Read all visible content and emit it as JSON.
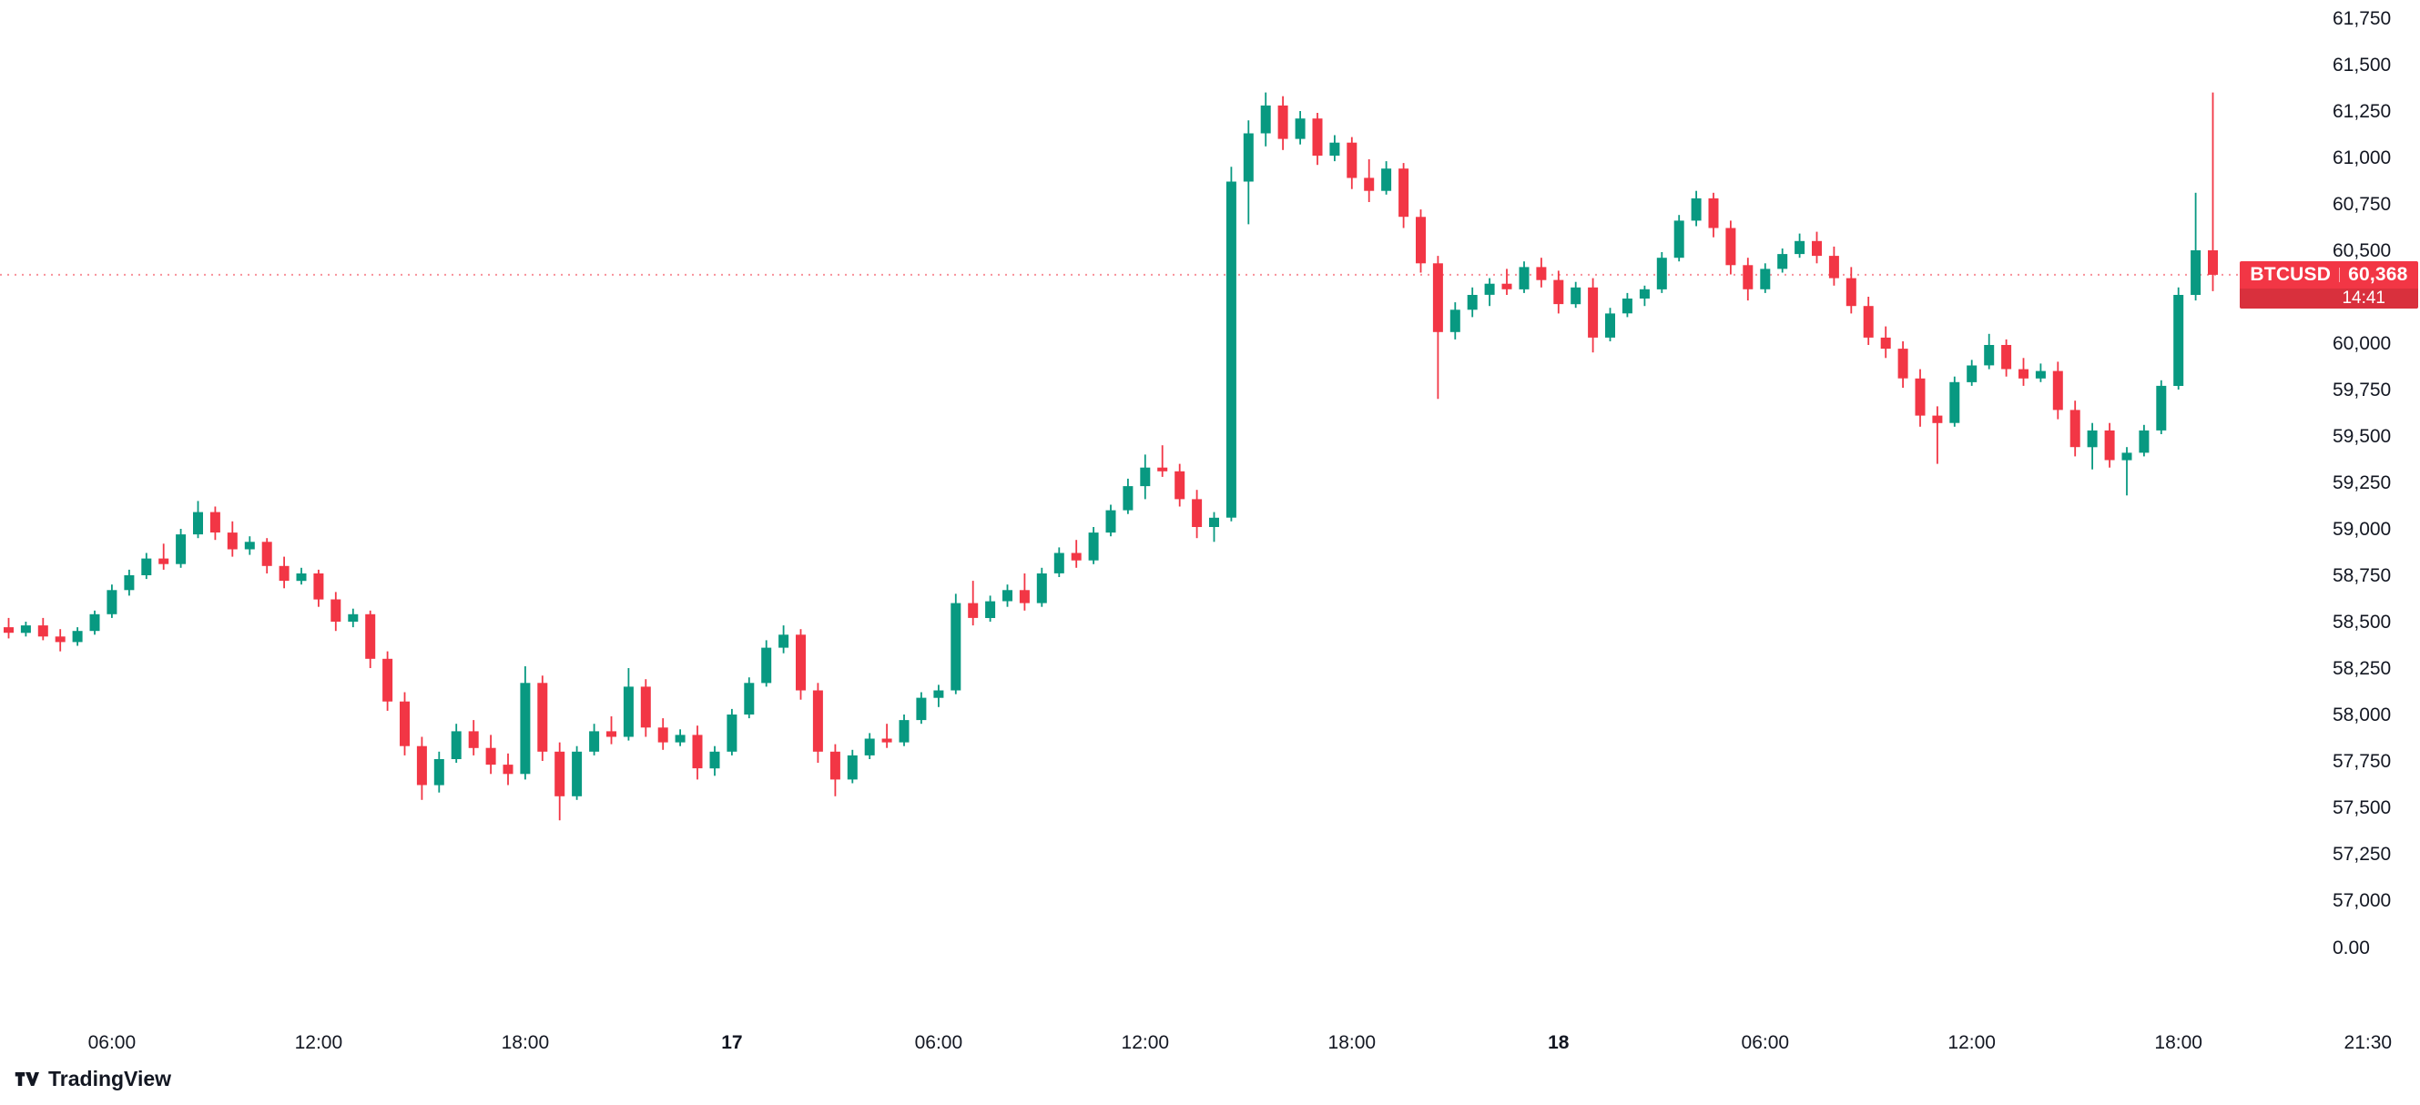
{
  "app": {
    "watermark_text": "TradingView"
  },
  "price_label": {
    "symbol": "BTCUSD",
    "price": "60,368",
    "countdown": "14:41"
  },
  "colors": {
    "up": "#089981",
    "down": "#F23645",
    "badge_bg": "#F23645",
    "price_line": "#F23645",
    "axis_text": "#131722",
    "background": "#FFFFFF"
  },
  "y_axis": {
    "ticks": [
      "61,750",
      "61,500",
      "61,250",
      "61,000",
      "60,750",
      "60,500",
      "60,000",
      "59,750",
      "59,500",
      "59,250",
      "59,000",
      "58,750",
      "58,500",
      "58,250",
      "58,000",
      "57,750",
      "57,500",
      "57,250",
      "57,000"
    ],
    "zero_label": "0.00"
  },
  "x_axis": {
    "labels": [
      {
        "text": "06:00",
        "index": 6,
        "bold": false
      },
      {
        "text": "12:00",
        "index": 18,
        "bold": false
      },
      {
        "text": "18:00",
        "index": 30,
        "bold": false
      },
      {
        "text": "17",
        "index": 42,
        "bold": true
      },
      {
        "text": "06:00",
        "index": 54,
        "bold": false
      },
      {
        "text": "12:00",
        "index": 66,
        "bold": false
      },
      {
        "text": "18:00",
        "index": 78,
        "bold": false
      },
      {
        "text": "18",
        "index": 90,
        "bold": true
      },
      {
        "text": "06:00",
        "index": 102,
        "bold": false
      },
      {
        "text": "12:00",
        "index": 114,
        "bold": false
      },
      {
        "text": "18:00",
        "index": 126,
        "bold": false
      },
      {
        "text": "21:30",
        "index": 137,
        "bold": false
      }
    ]
  },
  "chart_data": {
    "type": "candlestick",
    "symbol": "BTCUSD",
    "last_price": 60368,
    "price_range": [
      57000,
      61750
    ],
    "tick_step": 250,
    "legend_position": "none",
    "grid": false,
    "candles": [
      [
        58470,
        58520,
        58410,
        58440
      ],
      [
        58440,
        58500,
        58420,
        58480
      ],
      [
        58480,
        58520,
        58400,
        58420
      ],
      [
        58420,
        58460,
        58340,
        58390
      ],
      [
        58390,
        58470,
        58370,
        58450
      ],
      [
        58450,
        58560,
        58430,
        58540
      ],
      [
        58540,
        58700,
        58520,
        58670
      ],
      [
        58670,
        58780,
        58640,
        58750
      ],
      [
        58750,
        58870,
        58730,
        58840
      ],
      [
        58840,
        58920,
        58780,
        58810
      ],
      [
        58810,
        59000,
        58790,
        58970
      ],
      [
        58970,
        59150,
        58950,
        59090
      ],
      [
        59090,
        59120,
        58940,
        58980
      ],
      [
        58980,
        59040,
        58850,
        58890
      ],
      [
        58890,
        58960,
        58860,
        58930
      ],
      [
        58930,
        58950,
        58760,
        58800
      ],
      [
        58800,
        58850,
        58680,
        58720
      ],
      [
        58720,
        58790,
        58700,
        58760
      ],
      [
        58760,
        58780,
        58580,
        58620
      ],
      [
        58620,
        58660,
        58450,
        58500
      ],
      [
        58500,
        58570,
        58470,
        58540
      ],
      [
        58540,
        58560,
        58250,
        58300
      ],
      [
        58300,
        58340,
        58020,
        58070
      ],
      [
        58070,
        58120,
        57780,
        57830
      ],
      [
        57830,
        57880,
        57540,
        57620
      ],
      [
        57620,
        57800,
        57580,
        57760
      ],
      [
        57760,
        57950,
        57740,
        57910
      ],
      [
        57910,
        57970,
        57780,
        57820
      ],
      [
        57820,
        57890,
        57680,
        57730
      ],
      [
        57730,
        57790,
        57620,
        57680
      ],
      [
        57680,
        58260,
        57650,
        58170
      ],
      [
        58170,
        58210,
        57750,
        57800
      ],
      [
        57800,
        57850,
        57430,
        57560
      ],
      [
        57560,
        57830,
        57540,
        57800
      ],
      [
        57800,
        57950,
        57780,
        57910
      ],
      [
        57910,
        57990,
        57840,
        57880
      ],
      [
        57880,
        58250,
        57860,
        58150
      ],
      [
        58150,
        58190,
        57880,
        57930
      ],
      [
        57930,
        57980,
        57810,
        57850
      ],
      [
        57850,
        57920,
        57830,
        57890
      ],
      [
        57890,
        57940,
        57650,
        57710
      ],
      [
        57710,
        57830,
        57670,
        57800
      ],
      [
        57800,
        58030,
        57780,
        58000
      ],
      [
        58000,
        58200,
        57980,
        58170
      ],
      [
        58170,
        58400,
        58150,
        58360
      ],
      [
        58360,
        58480,
        58330,
        58430
      ],
      [
        58430,
        58460,
        58080,
        58130
      ],
      [
        58130,
        58170,
        57740,
        57800
      ],
      [
        57800,
        57840,
        57560,
        57650
      ],
      [
        57650,
        57810,
        57630,
        57780
      ],
      [
        57780,
        57900,
        57760,
        57870
      ],
      [
        57870,
        57950,
        57820,
        57850
      ],
      [
        57850,
        58000,
        57830,
        57970
      ],
      [
        57970,
        58120,
        57950,
        58090
      ],
      [
        58090,
        58160,
        58040,
        58130
      ],
      [
        58130,
        58650,
        58110,
        58600
      ],
      [
        58600,
        58720,
        58480,
        58520
      ],
      [
        58520,
        58640,
        58500,
        58610
      ],
      [
        58610,
        58700,
        58580,
        58670
      ],
      [
        58670,
        58760,
        58560,
        58600
      ],
      [
        58600,
        58790,
        58580,
        58760
      ],
      [
        58760,
        58900,
        58740,
        58870
      ],
      [
        58870,
        58940,
        58790,
        58830
      ],
      [
        58830,
        59010,
        58810,
        58980
      ],
      [
        58980,
        59130,
        58960,
        59100
      ],
      [
        59100,
        59270,
        59080,
        59230
      ],
      [
        59230,
        59400,
        59160,
        59330
      ],
      [
        59330,
        59450,
        59280,
        59310
      ],
      [
        59310,
        59350,
        59120,
        59160
      ],
      [
        59160,
        59210,
        58950,
        59010
      ],
      [
        59010,
        59090,
        58930,
        59060
      ],
      [
        59060,
        60950,
        59040,
        60870
      ],
      [
        60870,
        61200,
        60640,
        61130
      ],
      [
        61130,
        61350,
        61060,
        61280
      ],
      [
        61280,
        61330,
        61040,
        61100
      ],
      [
        61100,
        61250,
        61070,
        61210
      ],
      [
        61210,
        61240,
        60960,
        61010
      ],
      [
        61010,
        61120,
        60980,
        61080
      ],
      [
        61080,
        61110,
        60830,
        60890
      ],
      [
        60890,
        60990,
        60760,
        60820
      ],
      [
        60820,
        60980,
        60800,
        60940
      ],
      [
        60940,
        60970,
        60620,
        60680
      ],
      [
        60680,
        60720,
        60380,
        60430
      ],
      [
        60430,
        60470,
        59700,
        60060
      ],
      [
        60060,
        60220,
        60020,
        60180
      ],
      [
        60180,
        60300,
        60140,
        60260
      ],
      [
        60260,
        60350,
        60200,
        60320
      ],
      [
        60320,
        60400,
        60260,
        60290
      ],
      [
        60290,
        60440,
        60270,
        60410
      ],
      [
        60410,
        60460,
        60300,
        60340
      ],
      [
        60340,
        60390,
        60160,
        60210
      ],
      [
        60210,
        60330,
        60190,
        60300
      ],
      [
        60300,
        60350,
        59950,
        60030
      ],
      [
        60030,
        60190,
        60010,
        60160
      ],
      [
        60160,
        60270,
        60140,
        60240
      ],
      [
        60240,
        60310,
        60200,
        60290
      ],
      [
        60290,
        60490,
        60270,
        60460
      ],
      [
        60460,
        60690,
        60440,
        60660
      ],
      [
        60660,
        60820,
        60630,
        60780
      ],
      [
        60780,
        60810,
        60570,
        60620
      ],
      [
        60620,
        60660,
        60370,
        60420
      ],
      [
        60420,
        60460,
        60230,
        60290
      ],
      [
        60290,
        60430,
        60270,
        60400
      ],
      [
        60400,
        60510,
        60380,
        60480
      ],
      [
        60480,
        60590,
        60460,
        60550
      ],
      [
        60550,
        60600,
        60430,
        60470
      ],
      [
        60470,
        60520,
        60310,
        60350
      ],
      [
        60350,
        60410,
        60160,
        60200
      ],
      [
        60200,
        60250,
        59990,
        60030
      ],
      [
        60030,
        60090,
        59920,
        59970
      ],
      [
        59970,
        60010,
        59760,
        59810
      ],
      [
        59810,
        59860,
        59550,
        59610
      ],
      [
        59610,
        59660,
        59350,
        59570
      ],
      [
        59570,
        59820,
        59550,
        59790
      ],
      [
        59790,
        59910,
        59770,
        59880
      ],
      [
        59880,
        60050,
        59860,
        59990
      ],
      [
        59990,
        60020,
        59820,
        59860
      ],
      [
        59860,
        59920,
        59770,
        59810
      ],
      [
        59810,
        59890,
        59790,
        59850
      ],
      [
        59850,
        59900,
        59590,
        59640
      ],
      [
        59640,
        59690,
        59390,
        59440
      ],
      [
        59440,
        59570,
        59320,
        59530
      ],
      [
        59530,
        59570,
        59330,
        59370
      ],
      [
        59370,
        59440,
        59180,
        59410
      ],
      [
        59410,
        59560,
        59390,
        59530
      ],
      [
        59530,
        59800,
        59510,
        59770
      ],
      [
        59770,
        60300,
        59750,
        60260
      ],
      [
        60260,
        60810,
        60230,
        60500
      ],
      [
        60500,
        61350,
        60280,
        60368
      ]
    ]
  }
}
